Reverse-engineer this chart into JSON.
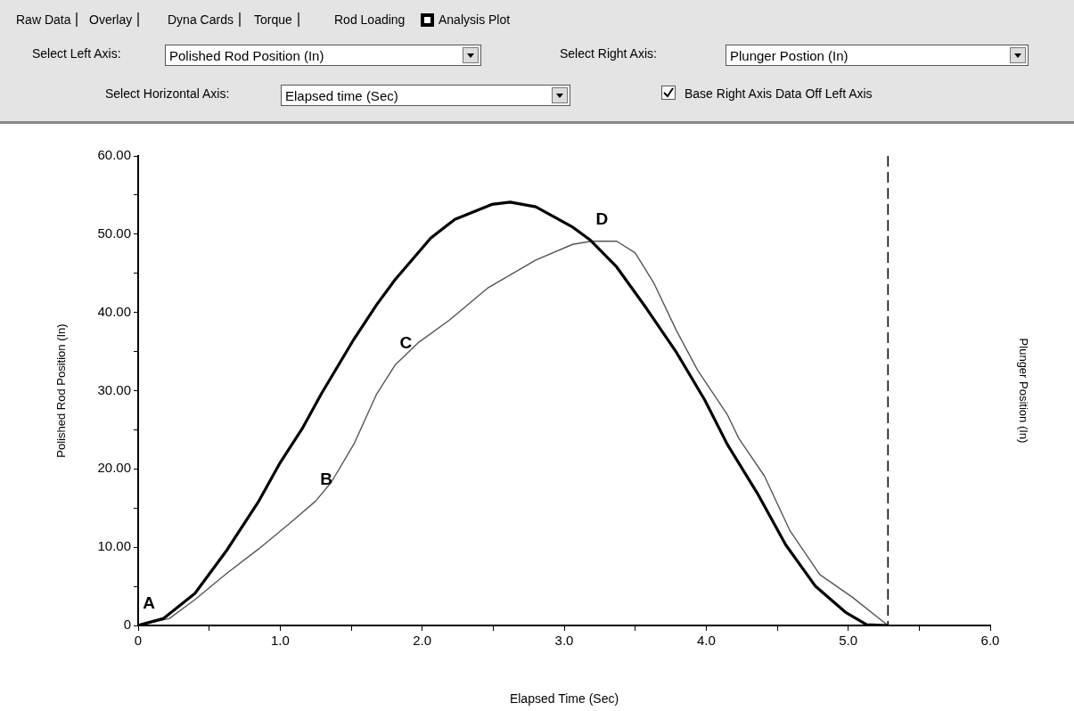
{
  "chart_data": {
    "type": "line",
    "xlabel": "Elapsed Time (Sec)",
    "ylabel": "Polished Rod Position (In)",
    "y2label": "Plunger Position (In)",
    "xlim": [
      0,
      6
    ],
    "ylim": [
      0,
      60
    ],
    "xticks": [
      {
        "value": 0,
        "label": "0"
      },
      {
        "value": 0.5,
        "label": null
      },
      {
        "value": 1,
        "label": "1.0"
      },
      {
        "value": 1.5,
        "label": null
      },
      {
        "value": 2,
        "label": "2.0"
      },
      {
        "value": 2.5,
        "label": null
      },
      {
        "value": 3,
        "label": "3.0"
      },
      {
        "value": 3.5,
        "label": null
      },
      {
        "value": 4,
        "label": "4.0"
      },
      {
        "value": 4.5,
        "label": null
      },
      {
        "value": 5,
        "label": "5.0"
      },
      {
        "value": 5.5,
        "label": null
      },
      {
        "value": 6,
        "label": "6.0"
      }
    ],
    "yticks": [
      {
        "value": 0,
        "label": "0"
      },
      {
        "value": 5,
        "label": null
      },
      {
        "value": 10,
        "label": "10.00"
      },
      {
        "value": 15,
        "label": null
      },
      {
        "value": 20,
        "label": "20.00"
      },
      {
        "value": 25,
        "label": null
      },
      {
        "value": 30,
        "label": "30.00"
      },
      {
        "value": 35,
        "label": null
      },
      {
        "value": 40,
        "label": "40.00"
      },
      {
        "value": 45,
        "label": null
      },
      {
        "value": 50,
        "label": "50.00"
      },
      {
        "value": 55,
        "label": null
      },
      {
        "value": 60,
        "label": "60.00"
      }
    ],
    "grid": false,
    "legend": false,
    "marker": "none",
    "series": [
      {
        "color": "#000000",
        "x": [
          0,
          0.18,
          0.4,
          0.62,
          0.85,
          1.0,
          1.16,
          1.29,
          1.52,
          1.68,
          1.81,
          2.06,
          2.23,
          2.49,
          2.62,
          2.8,
          3.06,
          3.18,
          3.37,
          3.58,
          3.79,
          3.99,
          4.15,
          4.36,
          4.56,
          4.77,
          4.98,
          5.13,
          5.28
        ],
        "values": [
          0,
          0.9,
          4.1,
          9.5,
          15.9,
          20.8,
          25.3,
          29.6,
          36.6,
          41,
          44.2,
          49.5,
          51.9,
          53.8,
          54.1,
          53.5,
          50.9,
          49.3,
          45.8,
          40.5,
          34.9,
          28.8,
          23.1,
          16.9,
          10.3,
          5,
          1.7,
          0.1,
          0
        ]
      },
      {
        "color": "#555555",
        "x": [
          0,
          0.22,
          0.4,
          0.62,
          0.85,
          1.07,
          1.25,
          1.36,
          1.52,
          1.68,
          1.81,
          1.97,
          2.19,
          2.46,
          2.8,
          3.06,
          3.19,
          3.37,
          3.5,
          3.63,
          3.79,
          3.94,
          4.15,
          4.23,
          4.41,
          4.59,
          4.8,
          5.03,
          5.28
        ],
        "values": [
          0,
          0.9,
          3.3,
          6.6,
          9.8,
          13.1,
          15.9,
          18.3,
          23.2,
          29.6,
          33.3,
          36.1,
          39,
          43.1,
          46.7,
          48.7,
          49.1,
          49.1,
          47.6,
          43.8,
          37.7,
          32.6,
          26.9,
          23.9,
          19.1,
          12.1,
          6.5,
          3.6,
          0
        ]
      }
    ],
    "ref_lines": [
      {
        "axis": "x",
        "value": 5.28,
        "label": null,
        "color": "#000000",
        "line_style": "dashed"
      }
    ],
    "annotations": [
      "Raw Data",
      "Overlay",
      "Dyna Cards",
      "Torque",
      "Rod Loading",
      "Analysis Plot",
      "Select Left Axis:",
      "Polished Rod Position (In)",
      "Select Right Axis:",
      "Plunger Postion (In)",
      "Select Horizontal Axis:",
      "Elapsed time (Sec)",
      "Base Right Axis Data Off Left Axis",
      {
        "text": "A",
        "x": 0,
        "y": 0
      },
      {
        "text": "B",
        "x": 1.25,
        "y": 15.9
      },
      {
        "text": "C",
        "x": 1.81,
        "y": 33.3
      },
      {
        "text": "D",
        "x": 3.19,
        "y": 49.1
      }
    ]
  }
}
